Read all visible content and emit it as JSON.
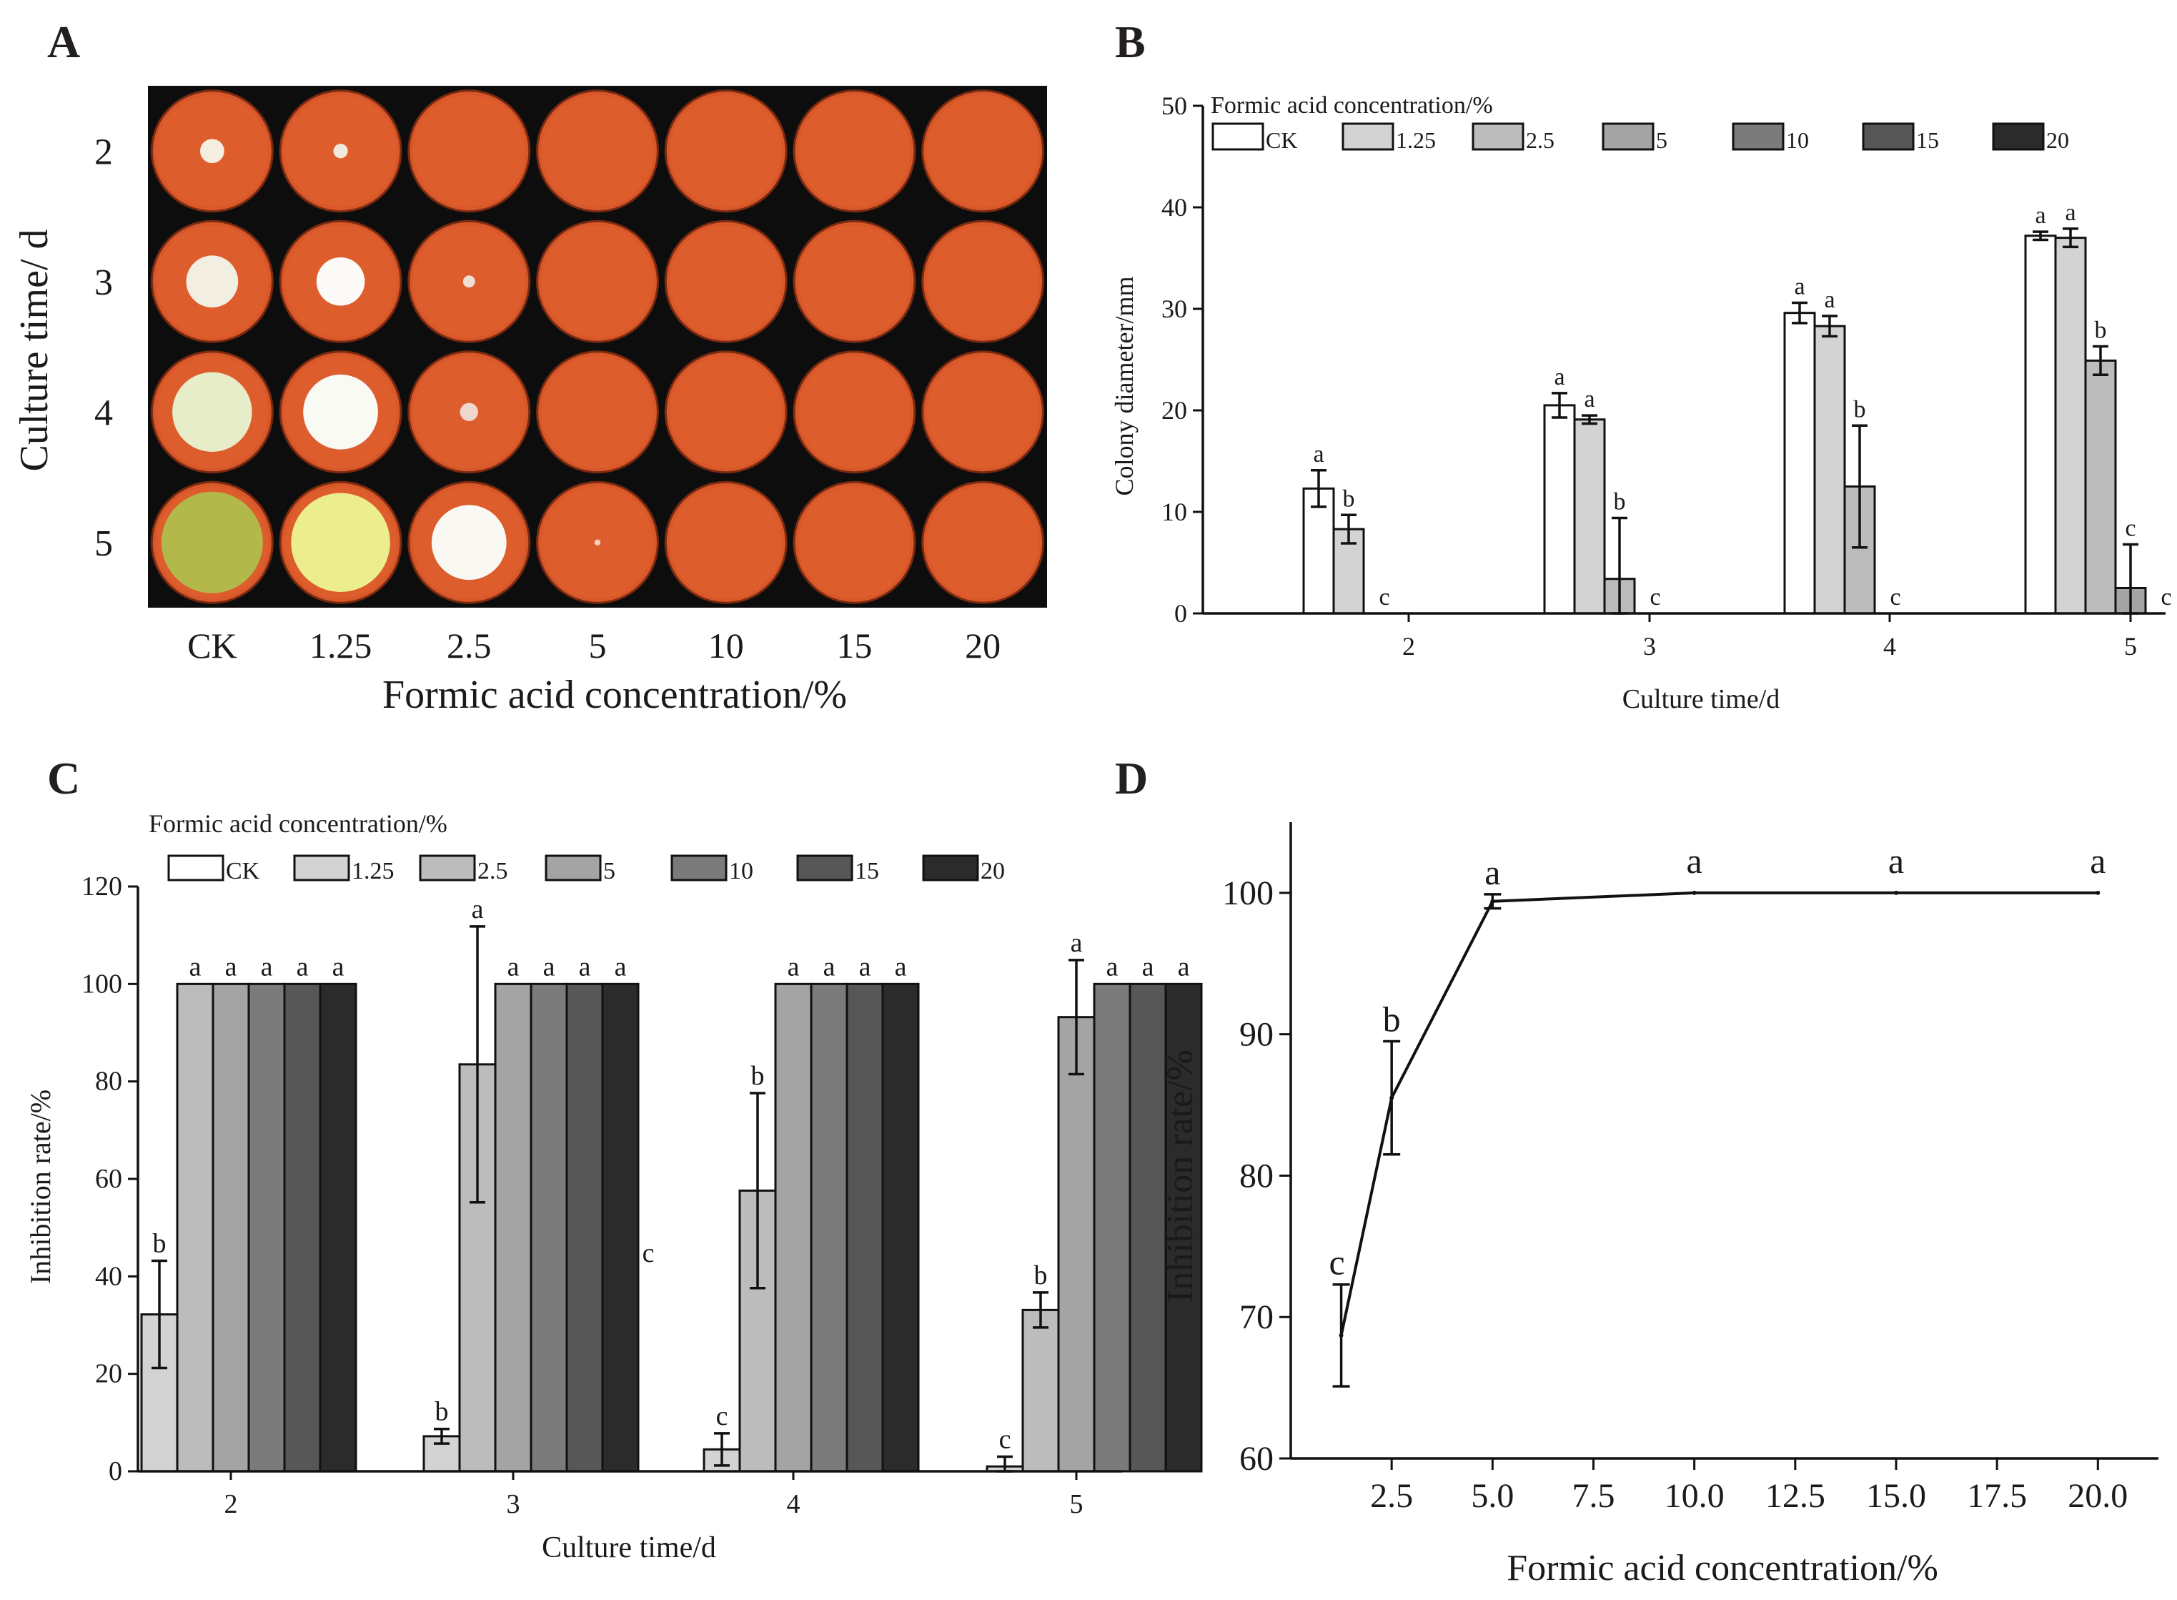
{
  "panel_labels": [
    "A",
    "B",
    "C",
    "D"
  ],
  "panel_a": {
    "rows": [
      "2",
      "3",
      "4",
      "5"
    ],
    "cols": [
      "CK",
      "1.25",
      "2.5",
      "5",
      "10",
      "15",
      "20"
    ],
    "ylabel": "Culture time/ d",
    "xlabel": "Formic acid concentration/%",
    "colony_sizes": [
      [
        0.2,
        0.12,
        0,
        0,
        0,
        0,
        0
      ],
      [
        0.43,
        0.4,
        0.1,
        0,
        0,
        0,
        0
      ],
      [
        0.66,
        0.62,
        0.15,
        0,
        0,
        0,
        0
      ],
      [
        0.84,
        0.82,
        0.62,
        0.05,
        0,
        0,
        0
      ]
    ],
    "colony_colors": [
      [
        "#f4ede0",
        "#f1e8dc",
        "",
        "",
        "",
        "",
        ""
      ],
      [
        "#f3eee2",
        "#fbfaf6",
        "#efe0d6",
        "",
        "",
        "",
        ""
      ],
      [
        "#e7ecc9",
        "#fafaf5",
        "#eed8cc",
        "",
        "",
        "",
        ""
      ],
      [
        "#b2b84a",
        "#eced8c",
        "#f9f8f2",
        "#f2d2bf",
        "",
        "",
        ""
      ]
    ],
    "dish_color": "#d9582a",
    "background": "#0d0d0d"
  },
  "chart_data": [
    {
      "panel": "B",
      "type": "bar",
      "title": "",
      "legend_title": "Formic acid concentration/%",
      "categories": [
        "2",
        "3",
        "4",
        "5"
      ],
      "xlabel": "Culture time/d",
      "ylabel": "Colony diameter/mm",
      "ylim": [
        0,
        50
      ],
      "yticks": [
        "0",
        "10",
        "20",
        "30",
        "40",
        "50"
      ],
      "series": [
        {
          "name": "CK",
          "color": "#ffffff",
          "values": [
            12.3,
            20.5,
            29.6,
            37.2
          ],
          "errors": [
            1.8,
            1.2,
            1.0,
            0.4
          ],
          "letters": [
            "a",
            "a",
            "a",
            "a"
          ]
        },
        {
          "name": "1.25",
          "color": "#d3d3d3",
          "values": [
            8.3,
            19.1,
            28.3,
            37.0
          ],
          "errors": [
            1.4,
            0.4,
            1.0,
            0.9
          ],
          "letters": [
            "b",
            "a",
            "a",
            "a"
          ]
        },
        {
          "name": "2.5",
          "color": "#bcbcbc",
          "values": [
            0,
            3.4,
            12.5,
            24.9
          ],
          "errors": [
            0,
            6.0,
            6.0,
            1.4
          ],
          "letters": [
            "c",
            "b",
            "b",
            "b"
          ]
        },
        {
          "name": "5",
          "color": "#a4a4a4",
          "values": [
            0,
            0,
            0,
            2.5
          ],
          "errors": [
            0,
            0,
            0,
            4.3
          ],
          "letters": [
            "",
            "c",
            "c",
            "c"
          ]
        },
        {
          "name": "10",
          "color": "#7b7b7b",
          "values": [
            0,
            0,
            0,
            0
          ],
          "errors": [
            0,
            0,
            0,
            0
          ],
          "letters": [
            "",
            "",
            "",
            "c"
          ]
        },
        {
          "name": "15",
          "color": "#575757",
          "values": [
            0,
            0,
            0,
            0
          ],
          "errors": [
            0,
            0,
            0,
            0
          ],
          "letters": [
            "",
            "",
            "",
            ""
          ]
        },
        {
          "name": "20",
          "color": "#2b2b2b",
          "values": [
            0,
            0,
            0,
            0
          ],
          "errors": [
            0,
            0,
            0,
            0
          ],
          "letters": [
            "",
            "",
            "",
            ""
          ]
        }
      ]
    },
    {
      "panel": "C",
      "type": "bar",
      "title": "",
      "legend_title": "Formic acid concentration/%",
      "categories": [
        "2",
        "3",
        "4",
        "5"
      ],
      "xlabel": "Culture time/d",
      "ylabel": "Inhibition rate/%",
      "ylim": [
        0,
        120
      ],
      "yticks": [
        "0",
        "20",
        "40",
        "60",
        "80",
        "100",
        "120"
      ],
      "series": [
        {
          "name": "CK",
          "color": "#ffffff",
          "values": [
            0,
            0,
            0,
            0
          ],
          "errors": [
            0,
            0,
            0,
            0
          ],
          "letters": [
            "",
            "",
            "",
            ""
          ]
        },
        {
          "name": "1.25",
          "color": "#d3d3d3",
          "values": [
            32.2,
            7.2,
            4.5,
            1.0
          ],
          "errors": [
            11.0,
            1.5,
            3.3,
            2.0
          ],
          "letters": [
            "b",
            "b",
            "c",
            "c"
          ]
        },
        {
          "name": "2.5",
          "color": "#bcbcbc",
          "values": [
            100,
            83.5,
            57.6,
            33.1
          ],
          "errors": [
            0,
            28.3,
            20.0,
            3.6
          ],
          "letters": [
            "a",
            "a",
            "b",
            "b"
          ]
        },
        {
          "name": "5",
          "color": "#a4a4a4",
          "values": [
            100,
            100,
            100,
            93.2
          ],
          "errors": [
            0,
            0,
            0,
            11.7
          ],
          "letters": [
            "a",
            "a",
            "a",
            "a"
          ]
        },
        {
          "name": "10",
          "color": "#7b7b7b",
          "values": [
            100,
            100,
            100,
            100
          ],
          "errors": [
            0,
            0,
            0,
            0
          ],
          "letters": [
            "a",
            "a",
            "a",
            "a"
          ]
        },
        {
          "name": "15",
          "color": "#575757",
          "values": [
            100,
            100,
            100,
            100
          ],
          "errors": [
            0,
            0,
            0,
            0
          ],
          "letters": [
            "a",
            "a",
            "a",
            "a"
          ]
        },
        {
          "name": "20",
          "color": "#2b2b2b",
          "values": [
            100,
            100,
            100,
            100
          ],
          "errors": [
            0,
            0,
            0,
            0
          ],
          "letters": [
            "a",
            "a",
            "a",
            "a"
          ]
        }
      ],
      "annotations": [
        {
          "text": "c",
          "category": "3",
          "value": 43
        }
      ]
    },
    {
      "panel": "D",
      "type": "line",
      "title": "",
      "xlabel": "Formic acid concentration/%",
      "ylabel": "Inhibition rate/%",
      "xlim": [
        0,
        21.5
      ],
      "ylim": [
        60,
        105
      ],
      "xticks": [
        "2.5",
        "5.0",
        "7.5",
        "10.0",
        "12.5",
        "15.0",
        "17.5",
        "20.0"
      ],
      "yticks": [
        "60",
        "70",
        "80",
        "90",
        "100"
      ],
      "x": [
        1.25,
        2.5,
        5,
        10,
        15,
        20
      ],
      "y": [
        68.7,
        85.5,
        99.4,
        100,
        100,
        100
      ],
      "errors": [
        3.6,
        4.0,
        0.5,
        0,
        0,
        0
      ],
      "letters": [
        "c",
        "b",
        "a",
        "a",
        "a",
        "a"
      ]
    }
  ]
}
